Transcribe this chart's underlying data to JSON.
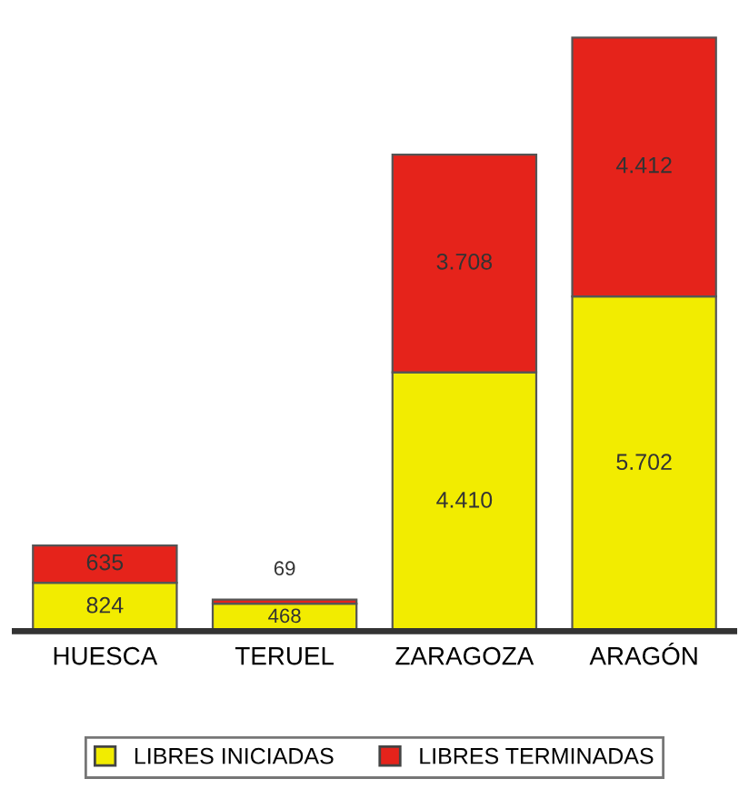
{
  "chart_data": {
    "type": "bar",
    "stacked": true,
    "categories": [
      "HUESCA",
      "TERUEL",
      "ZARAGOZA",
      "ARAGÓN"
    ],
    "series": [
      {
        "name": "LIBRES INICIADAS",
        "color": "#f2ec00",
        "values": [
          824,
          468,
          4410,
          5702
        ],
        "value_labels": [
          "824",
          "468",
          "4.410",
          "5.702"
        ]
      },
      {
        "name": "LIBRES TERMINADAS",
        "color": "#e5231b",
        "values": [
          635,
          69,
          3708,
          4412
        ],
        "value_labels": [
          "635",
          "69",
          "3.708",
          "4.412"
        ]
      }
    ],
    "legend": "bottom",
    "grid": false
  }
}
